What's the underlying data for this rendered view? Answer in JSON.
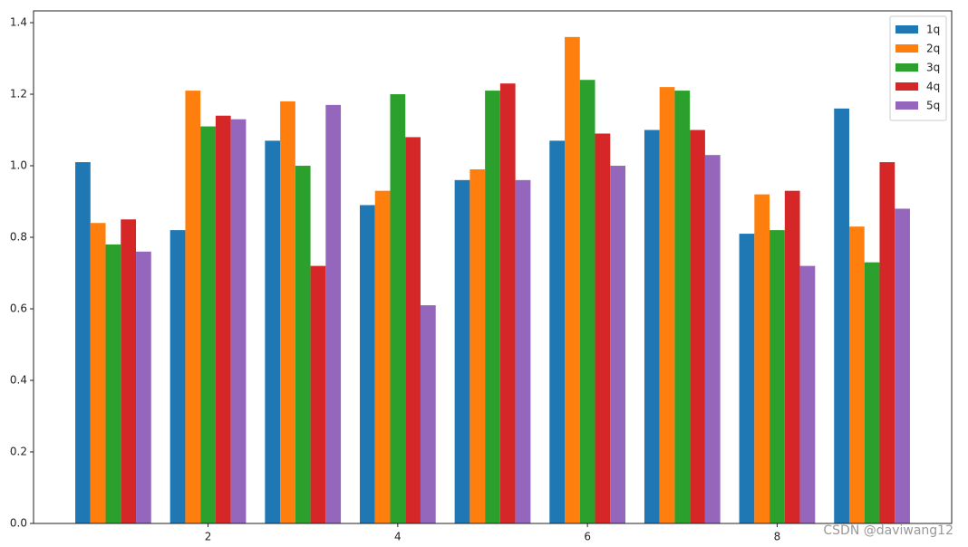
{
  "chart_data": {
    "type": "bar",
    "x": [
      1,
      2,
      3,
      4,
      5,
      6,
      7,
      8,
      9
    ],
    "series": [
      {
        "name": "1q",
        "color": "#1f77b4",
        "values": [
          1.01,
          0.82,
          1.07,
          0.89,
          0.96,
          1.07,
          1.1,
          0.81,
          1.16
        ]
      },
      {
        "name": "2q",
        "color": "#ff7f0e",
        "values": [
          0.84,
          1.21,
          1.18,
          0.93,
          0.99,
          1.36,
          1.22,
          0.92,
          0.83
        ]
      },
      {
        "name": "3q",
        "color": "#2ca02c",
        "values": [
          0.78,
          1.11,
          1.0,
          1.2,
          1.21,
          1.24,
          1.21,
          0.82,
          0.73
        ]
      },
      {
        "name": "4q",
        "color": "#d62728",
        "values": [
          0.85,
          1.14,
          0.72,
          1.08,
          1.23,
          1.09,
          1.1,
          0.93,
          1.01
        ]
      },
      {
        "name": "5q",
        "color": "#9467bd",
        "values": [
          0.76,
          1.13,
          1.17,
          0.61,
          0.96,
          1.0,
          1.03,
          0.72,
          0.88
        ]
      }
    ],
    "xlim": [
      0.16,
      9.84
    ],
    "xticks": [
      2,
      4,
      6,
      8
    ],
    "ylim": [
      0,
      1.433
    ],
    "yticks": [
      {
        "value": 0,
        "label": "0.0"
      },
      0.2,
      0.4,
      0.6,
      0.8,
      {
        "value": 1,
        "label": "1.0"
      },
      1.2,
      1.4
    ],
    "legend": "upper right",
    "watermark": "CSDN @daviwang12"
  }
}
